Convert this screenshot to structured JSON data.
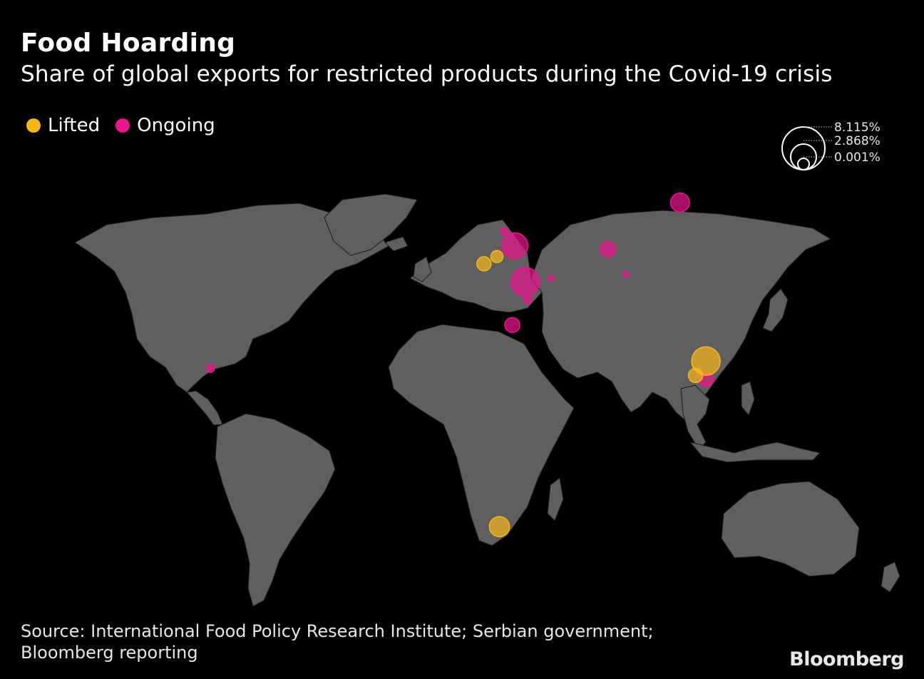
{
  "header": {
    "title": "Food Hoarding",
    "subtitle": "Share of global exports for restricted products during the Covid-19 crisis"
  },
  "legend": {
    "items": [
      {
        "label": "Lifted",
        "color": "#f5b61f"
      },
      {
        "label": "Ongoing",
        "color": "#e8158c"
      }
    ]
  },
  "size_legend": {
    "values": [
      "8.115%",
      "2.868%",
      "0.001%"
    ]
  },
  "colors": {
    "background": "#000000",
    "land": "#5f5f5f",
    "borders": "#1a1a1a",
    "lifted": "#f5b61f",
    "ongoing": "#e8158c"
  },
  "map_data": {
    "markers": [
      {
        "status": "Ongoing",
        "lon": 95,
        "lat": 61,
        "share": 1.6
      },
      {
        "status": "Ongoing",
        "lon": 31,
        "lat": 49,
        "share": 3.0
      },
      {
        "status": "Ongoing",
        "lon": 27,
        "lat": 53,
        "share": 0.25
      },
      {
        "status": "Ongoing",
        "lon": 67,
        "lat": 48,
        "share": 1.1
      },
      {
        "status": "Ongoing",
        "lon": 35,
        "lat": 39,
        "share": 3.6
      },
      {
        "status": "Ongoing",
        "lon": 45,
        "lat": 40,
        "share": 0.12
      },
      {
        "status": "Ongoing",
        "lon": 74,
        "lat": 41,
        "share": 0.1
      },
      {
        "status": "Ongoing",
        "lon": 36,
        "lat": 34,
        "share": 0.3
      },
      {
        "status": "Ongoing",
        "lon": 30,
        "lat": 27,
        "share": 1.0
      },
      {
        "status": "Ongoing",
        "lon": -87,
        "lat": 15,
        "share": 0.3
      },
      {
        "status": "Ongoing",
        "lon": 105,
        "lat": 12,
        "share": 1.0
      },
      {
        "status": "Lifted",
        "lon": 19,
        "lat": 44,
        "share": 0.9
      },
      {
        "status": "Lifted",
        "lon": 24,
        "lat": 46,
        "share": 0.65
      },
      {
        "status": "Lifted",
        "lon": 105,
        "lat": 17,
        "share": 3.6
      },
      {
        "status": "Lifted",
        "lon": 101,
        "lat": 13,
        "share": 0.9
      },
      {
        "status": "Lifted",
        "lon": 25,
        "lat": -29,
        "share": 1.8
      }
    ]
  },
  "footer": {
    "source_line1": "Source: International Food Policy Research Institute; Serbian government;",
    "source_line2": "Bloomberg reporting",
    "brand": "Bloomberg"
  }
}
